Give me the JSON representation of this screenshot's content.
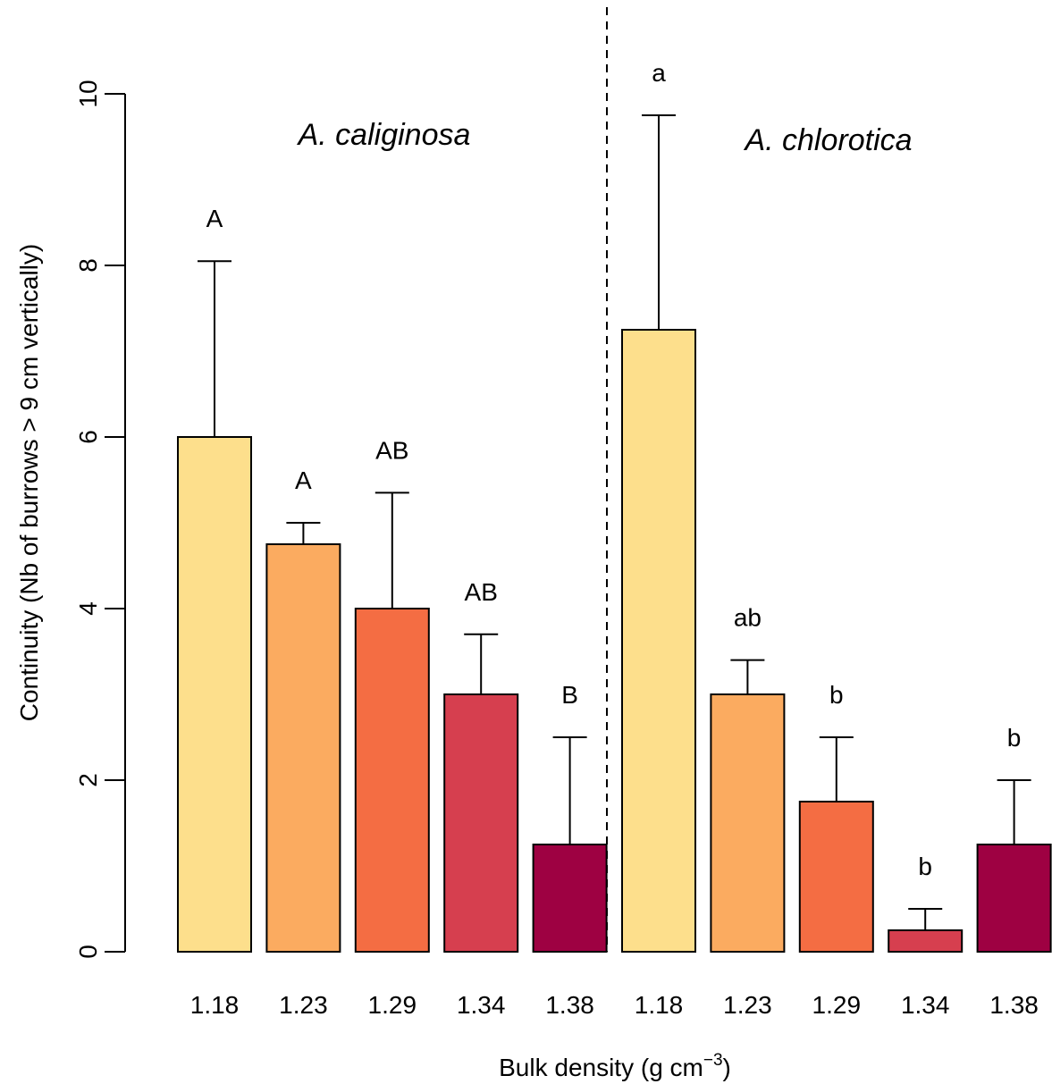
{
  "chart_data": {
    "type": "bar",
    "ylabel": "Continuity (Nb of burrows > 9 cm vertically)",
    "xlabel": "Bulk density (g cm",
    "xlabel_sup": "−3",
    "xlabel_close": ")",
    "ylim": [
      0,
      10
    ],
    "yticks": [
      "0",
      "2",
      "4",
      "6",
      "8",
      "10"
    ],
    "grid": false,
    "groups": [
      {
        "name": "A. caliginosa",
        "categories": [
          "1.18",
          "1.23",
          "1.29",
          "1.34",
          "1.38"
        ],
        "values": [
          6.0,
          4.75,
          4.0,
          3.0,
          1.25
        ],
        "error_upper": [
          8.05,
          5.0,
          5.35,
          3.7,
          2.5
        ],
        "significance": [
          "A",
          "A",
          "AB",
          "AB",
          "B"
        ]
      },
      {
        "name": "A. chlorotica",
        "categories": [
          "1.18",
          "1.23",
          "1.29",
          "1.34",
          "1.38"
        ],
        "values": [
          7.25,
          3.0,
          1.75,
          0.25,
          1.25
        ],
        "error_upper": [
          9.75,
          3.4,
          2.5,
          0.5,
          2.0
        ],
        "significance": [
          "a",
          "ab",
          "b",
          "b",
          "b"
        ]
      }
    ],
    "colors": [
      "#FDDF8C",
      "#FBAB60",
      "#F46D43",
      "#D63F4F",
      "#9E0142"
    ]
  }
}
